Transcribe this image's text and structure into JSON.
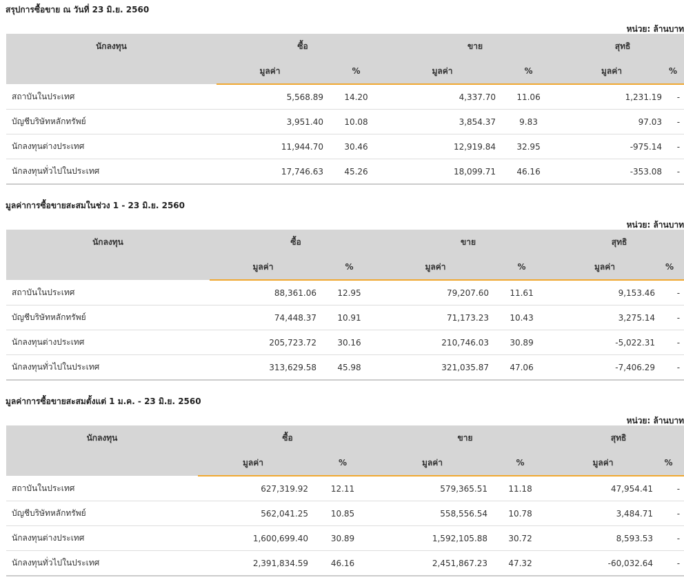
{
  "unit_label": "หน่วย: ล้านบาท",
  "headers": {
    "investor": "นักลงทุน",
    "buy": "ซื้อ",
    "sell": "ขาย",
    "net": "สุทธิ",
    "value": "มูลค่า",
    "percent": "%"
  },
  "tables": [
    {
      "title": "สรุปการซื้อขาย ณ วันที่ 23 มิ.ย. 2560",
      "rows": [
        {
          "name": "สถาบันในประเทศ",
          "buy": "5,568.89",
          "buy_pct": "14.20",
          "sell": "4,337.70",
          "sell_pct": "11.06",
          "net": "1,231.19",
          "net_pct": "-",
          "net_sign": "pos"
        },
        {
          "name": "บัญชีบริษัทหลักทรัพย์",
          "buy": "3,951.40",
          "buy_pct": "10.08",
          "sell": "3,854.37",
          "sell_pct": "9.83",
          "net": "97.03",
          "net_pct": "-",
          "net_sign": "pos"
        },
        {
          "name": "นักลงทุนต่างประเทศ",
          "buy": "11,944.70",
          "buy_pct": "30.46",
          "sell": "12,919.84",
          "sell_pct": "32.95",
          "net": "-975.14",
          "net_pct": "-",
          "net_sign": "neg"
        },
        {
          "name": "นักลงทุนทั่วไปในประเทศ",
          "buy": "17,746.63",
          "buy_pct": "45.26",
          "sell": "18,099.71",
          "sell_pct": "46.16",
          "net": "-353.08",
          "net_pct": "-",
          "net_sign": "neg"
        }
      ]
    },
    {
      "title": "มูลค่าการซื้อขายสะสมในช่วง 1 - 23 มิ.ย. 2560",
      "rows": [
        {
          "name": "สถาบันในประเทศ",
          "buy": "88,361.06",
          "buy_pct": "12.95",
          "sell": "79,207.60",
          "sell_pct": "11.61",
          "net": "9,153.46",
          "net_pct": "-",
          "net_sign": "pos"
        },
        {
          "name": "บัญชีบริษัทหลักทรัพย์",
          "buy": "74,448.37",
          "buy_pct": "10.91",
          "sell": "71,173.23",
          "sell_pct": "10.43",
          "net": "3,275.14",
          "net_pct": "-",
          "net_sign": "pos"
        },
        {
          "name": "นักลงทุนต่างประเทศ",
          "buy": "205,723.72",
          "buy_pct": "30.16",
          "sell": "210,746.03",
          "sell_pct": "30.89",
          "net": "-5,022.31",
          "net_pct": "-",
          "net_sign": "neg"
        },
        {
          "name": "นักลงทุนทั่วไปในประเทศ",
          "buy": "313,629.58",
          "buy_pct": "45.98",
          "sell": "321,035.87",
          "sell_pct": "47.06",
          "net": "-7,406.29",
          "net_pct": "-",
          "net_sign": "neg"
        }
      ]
    },
    {
      "title": "มูลค่าการซื้อขายสะสมตั้งแต่ 1 ม.ค. - 23 มิ.ย. 2560",
      "rows": [
        {
          "name": "สถาบันในประเทศ",
          "buy": "627,319.92",
          "buy_pct": "12.11",
          "sell": "579,365.51",
          "sell_pct": "11.18",
          "net": "47,954.41",
          "net_pct": "-",
          "net_sign": "pos"
        },
        {
          "name": "บัญชีบริษัทหลักทรัพย์",
          "buy": "562,041.25",
          "buy_pct": "10.85",
          "sell": "558,556.54",
          "sell_pct": "10.78",
          "net": "3,484.71",
          "net_pct": "-",
          "net_sign": "pos"
        },
        {
          "name": "นักลงทุนต่างประเทศ",
          "buy": "1,600,699.40",
          "buy_pct": "30.89",
          "sell": "1,592,105.88",
          "sell_pct": "30.72",
          "net": "8,593.53",
          "net_pct": "-",
          "net_sign": "pos"
        },
        {
          "name": "นักลงทุนทั่วไปในประเทศ",
          "buy": "2,391,834.59",
          "buy_pct": "46.16",
          "sell": "2,451,867.23",
          "sell_pct": "47.32",
          "net": "-60,032.64",
          "net_pct": "-",
          "net_sign": "neg"
        }
      ]
    }
  ]
}
